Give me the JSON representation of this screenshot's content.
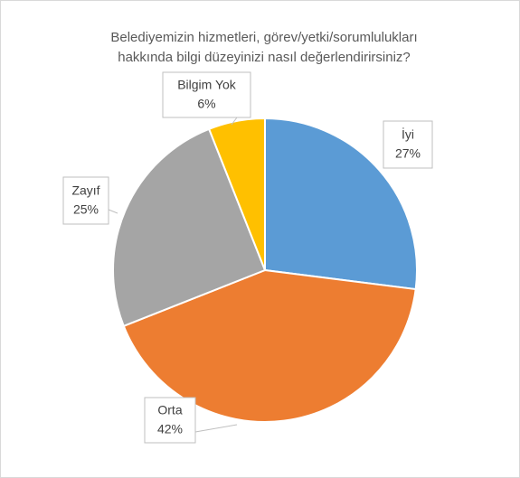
{
  "chart_data": {
    "type": "pie",
    "title": [
      "Belediyemizin hizmetleri, görev/yetki/sorumlulukları",
      "hakkında bilgi düzeyinizi nasıl değerlendirirsiniz?"
    ],
    "categories": [
      "İyi",
      "Orta",
      "Zayıf",
      "Bilgim Yok"
    ],
    "values": [
      27,
      42,
      25,
      6
    ],
    "value_labels": [
      "27%",
      "42%",
      "25%",
      "6%"
    ],
    "colors": [
      "#5B9BD5",
      "#ED7D31",
      "#A5A5A5",
      "#FFC000"
    ]
  }
}
